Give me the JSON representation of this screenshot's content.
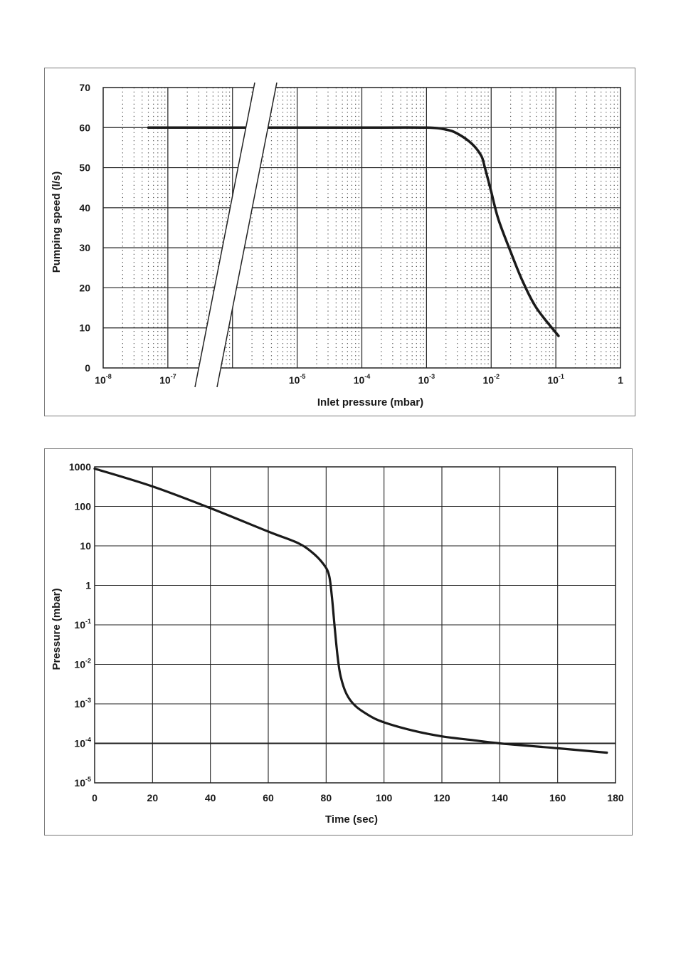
{
  "chart_data": [
    {
      "type": "line",
      "xlabel": "Inlet pressure (mbar)",
      "ylabel": "Pumping speed (l/s)",
      "x_scale": "log",
      "xlim": [
        1e-08,
        1
      ],
      "ylim": [
        0,
        70
      ],
      "x_ticks": [
        {
          "value": 1e-08,
          "base": "10",
          "exp": "-8"
        },
        {
          "value": 1e-07,
          "base": "10",
          "exp": "-7"
        },
        {
          "value": 1e-05,
          "base": "10",
          "exp": "-5"
        },
        {
          "value": 0.0001,
          "base": "10",
          "exp": "-4"
        },
        {
          "value": 0.001,
          "base": "10",
          "exp": "-3"
        },
        {
          "value": 0.01,
          "base": "10",
          "exp": "-2"
        },
        {
          "value": 0.1,
          "base": "10",
          "exp": "-1"
        },
        {
          "value": 1,
          "base": "1",
          "exp": ""
        }
      ],
      "y_ticks": [
        "0",
        "10",
        "20",
        "30",
        "40",
        "50",
        "60",
        "70"
      ],
      "axis_break": "between 10^-7 and 10^-5",
      "grid": true,
      "series": [
        {
          "x": [
            5e-08,
            1e-07,
            1e-06,
            1e-05,
            0.0001,
            0.001,
            0.002,
            0.003,
            0.005,
            0.007,
            0.008,
            0.01,
            0.013,
            0.02,
            0.03,
            0.05,
            0.11
          ],
          "y": [
            60,
            60,
            60,
            60,
            60,
            60,
            59.5,
            58.5,
            56,
            53,
            50,
            44,
            37,
            29,
            22,
            15,
            8
          ]
        }
      ]
    },
    {
      "type": "line",
      "xlabel": "Time (sec)",
      "ylabel": "Pressure (mbar)",
      "y_scale": "log",
      "xlim": [
        0,
        180
      ],
      "ylim": [
        1e-05,
        1000
      ],
      "x_ticks": [
        "0",
        "20",
        "40",
        "60",
        "80",
        "100",
        "120",
        "140",
        "160",
        "180"
      ],
      "y_ticks": [
        {
          "value": 1e-05,
          "base": "10",
          "exp": "-5"
        },
        {
          "value": 0.0001,
          "base": "10",
          "exp": "-4"
        },
        {
          "value": 0.001,
          "base": "10",
          "exp": "-3"
        },
        {
          "value": 0.01,
          "base": "10",
          "exp": "-2"
        },
        {
          "value": 0.1,
          "base": "10",
          "exp": "-1"
        },
        {
          "value": 1,
          "base": "1",
          "exp": ""
        },
        {
          "value": 10,
          "base": "10",
          "exp": ""
        },
        {
          "value": 100,
          "base": "100",
          "exp": ""
        },
        {
          "value": 1000,
          "base": "1000",
          "exp": ""
        }
      ],
      "reference_line": 0.0001,
      "grid": true,
      "series": [
        {
          "x": [
            0,
            20,
            40,
            60,
            70,
            75,
            79,
            81,
            82,
            83,
            84,
            85,
            87,
            90,
            95,
            100,
            110,
            120,
            130,
            140,
            160,
            177
          ],
          "y": [
            900,
            320,
            90,
            23,
            12,
            7,
            3.5,
            1.8,
            0.5,
            0.08,
            0.015,
            0.005,
            0.0018,
            0.0009,
            0.0005,
            0.00034,
            0.00021,
            0.00015,
            0.000122,
            0.0001,
            7.5e-05,
            5.8e-05
          ]
        }
      ]
    }
  ]
}
